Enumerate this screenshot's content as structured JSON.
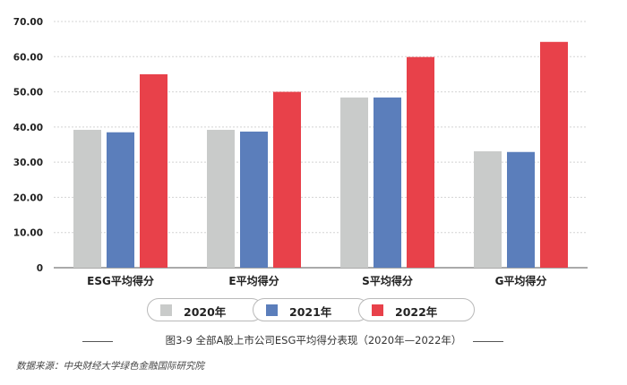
{
  "chart_data": {
    "type": "bar",
    "categories": [
      "ESG平均得分",
      "E平均得分",
      "S平均得分",
      "G平均得分"
    ],
    "series": [
      {
        "name": "2020年",
        "values": [
          39.2,
          39.2,
          48.4,
          33.1
        ],
        "color": "#c9cbca"
      },
      {
        "name": "2021年",
        "values": [
          38.5,
          38.7,
          48.4,
          32.9
        ],
        "color": "#5b7ebb"
      },
      {
        "name": "2022年",
        "values": [
          55.0,
          50.0,
          59.9,
          64.2
        ],
        "color": "#e8414a"
      }
    ],
    "yticks": [
      "0",
      "10.00",
      "20.00",
      "30.00",
      "40.00",
      "50.00",
      "60.00",
      "70.00"
    ],
    "ylim": [
      0,
      70
    ],
    "grid": true,
    "legend_position": "bottom"
  },
  "caption": "图3-9  全部A股上市公司ESG平均得分表现（2020年—2022年）",
  "source": "数据来源：中央财经大学绿色金融国际研究院"
}
